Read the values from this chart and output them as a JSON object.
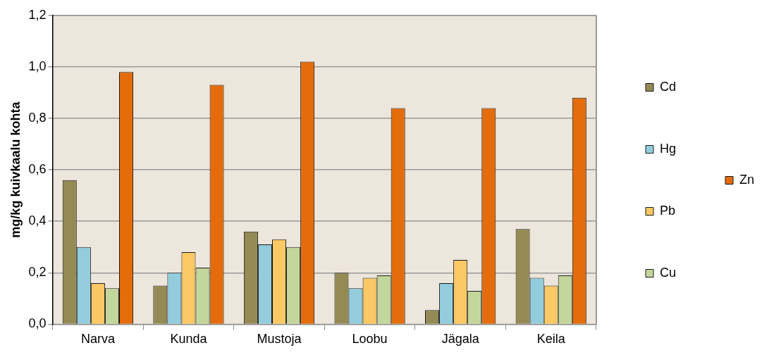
{
  "chart_data": {
    "type": "bar",
    "ylabel": "mg/kg kuivkaalu kohta",
    "categories": [
      "Narva",
      "Kunda",
      "Mustoja",
      "Loobu",
      "Jägala",
      "Keila"
    ],
    "series": [
      {
        "name": "Cd",
        "color": "#948a54",
        "values": [
          0.56,
          0.15,
          0.36,
          0.2,
          0.055,
          0.37
        ]
      },
      {
        "name": "Hg",
        "color": "#93cddd",
        "values": [
          0.3,
          0.2,
          0.31,
          0.14,
          0.16,
          0.18
        ]
      },
      {
        "name": "Pb",
        "color": "#fac864",
        "values": [
          0.16,
          0.28,
          0.33,
          0.18,
          0.25,
          0.15
        ]
      },
      {
        "name": "Cu",
        "color": "#c3d69b",
        "values": [
          0.14,
          0.22,
          0.3,
          0.19,
          0.13,
          0.19
        ]
      },
      {
        "name": "Zn",
        "color": "#e46c0a",
        "values": [
          0.98,
          0.93,
          1.02,
          0.84,
          0.84,
          0.88
        ]
      }
    ],
    "ylim": [
      0,
      1.2
    ],
    "yticks": [
      {
        "value": 0,
        "label": "0,0"
      },
      {
        "value": 0.2,
        "label": "0,2"
      },
      {
        "value": 0.4,
        "label": "0,4"
      },
      {
        "value": 0.6,
        "label": "0,6"
      },
      {
        "value": 0.8,
        "label": "0,8"
      },
      {
        "value": 1,
        "label": "1,0"
      },
      {
        "value": 1.2,
        "label": "1,2"
      }
    ],
    "grid": "y",
    "legend": "right"
  }
}
